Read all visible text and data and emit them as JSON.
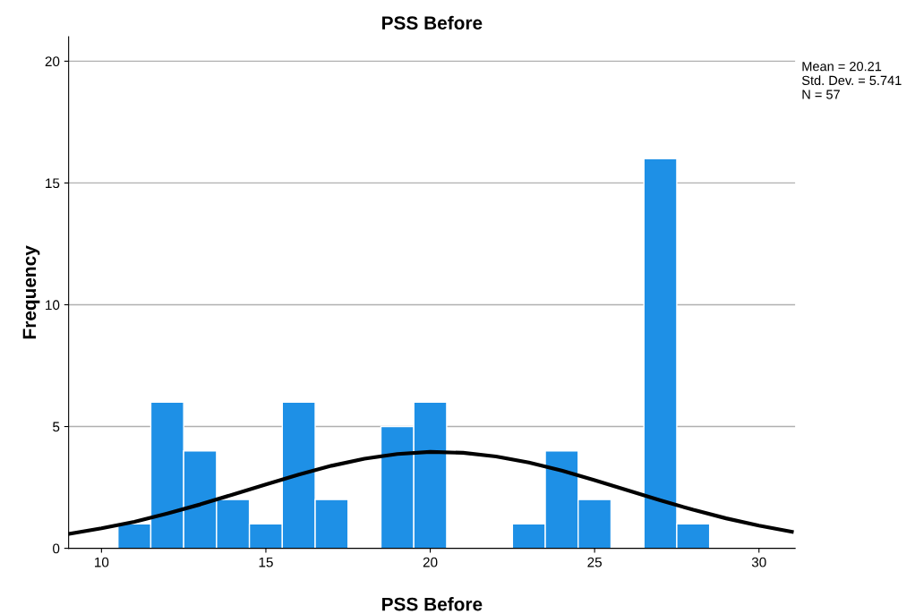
{
  "chart_data": {
    "type": "histogram",
    "title": "PSS Before",
    "xlabel": "PSS Before",
    "ylabel": "Frequency",
    "bins": [
      10.5,
      11.5,
      12.5,
      13.5,
      14.5,
      15.5,
      16.5,
      17.5,
      18.5,
      19.5,
      20.5,
      21.5,
      22.5,
      23.5,
      24.5,
      25.5,
      26.5,
      27.5,
      28.5
    ],
    "values": [
      1,
      6,
      4,
      2,
      1,
      6,
      2,
      0,
      5,
      6,
      0,
      0,
      1,
      4,
      2,
      0,
      16,
      1
    ],
    "color": "#1e90e6",
    "series": [
      {
        "type": "line",
        "color": "#000000",
        "x": [
          9,
          10,
          11,
          12,
          13,
          14,
          15,
          16,
          17,
          18,
          19,
          20,
          21,
          22,
          23,
          24,
          25,
          26,
          27,
          28,
          29,
          30,
          31
        ],
        "values": [
          0.59,
          0.82,
          1.09,
          1.43,
          1.8,
          2.21,
          2.62,
          3.03,
          3.39,
          3.68,
          3.87,
          3.96,
          3.92,
          3.77,
          3.52,
          3.19,
          2.8,
          2.38,
          1.97,
          1.58,
          1.23,
          0.93,
          0.68
        ]
      }
    ],
    "xlim": [
      9,
      31.1
    ],
    "ylim": [
      0,
      21
    ],
    "xticks": [
      10,
      15,
      20,
      25,
      30
    ],
    "yticks": [
      0,
      5,
      10,
      15,
      20
    ],
    "grid": "y",
    "annotations": [
      "Mean = 20.21\nStd. Dev. = 5.741\nN = 57"
    ]
  }
}
